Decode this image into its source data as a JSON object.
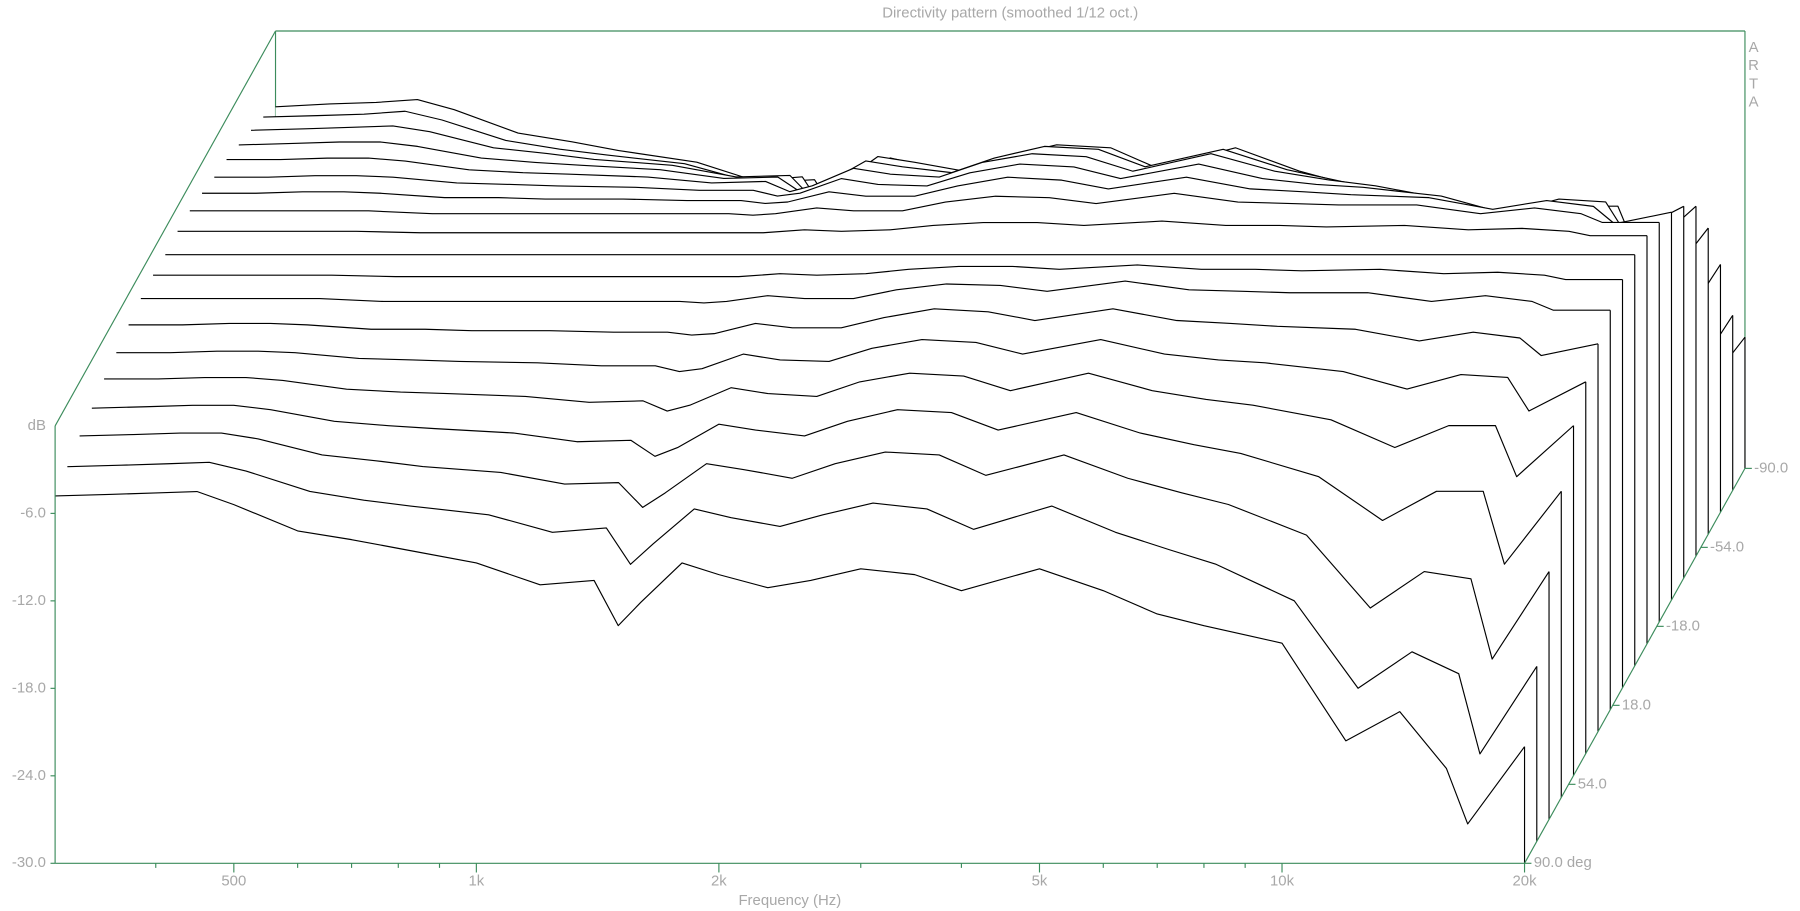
{
  "chart_data": {
    "type": "waterfall",
    "title": "Directivity pattern (smoothed 1/12 oct.)",
    "x_label": "Frequency (Hz)",
    "y_label": "dB",
    "watermark": "ARTA",
    "color": "#000000",
    "axis_color": "#3c8c5c",
    "log_x": true,
    "xlim": [
      300,
      20000
    ],
    "ylim": [
      -30,
      0
    ],
    "zlim": [
      -90,
      90
    ],
    "xticks": [
      500,
      {
        "value": 1000,
        "label": "1k"
      },
      {
        "value": 2000,
        "label": "2k"
      },
      {
        "value": 5000,
        "label": "5k"
      },
      {
        "value": 10000,
        "label": "10k"
      },
      {
        "value": 20000,
        "label": "20k"
      }
    ],
    "xminorticks": [
      400,
      600,
      700,
      800,
      900,
      3000,
      4000,
      6000,
      7000,
      8000,
      9000
    ],
    "yticks": [
      {
        "value": -30,
        "label": "-30.0"
      },
      {
        "value": -24,
        "label": "-24.0"
      },
      {
        "value": -18,
        "label": "-18.0"
      },
      {
        "value": -12,
        "label": "-12.0"
      },
      {
        "value": -6,
        "label": "-6.0"
      }
    ],
    "zticks": [
      {
        "value": -90,
        "label": "-90.0"
      },
      {
        "value": -54,
        "label": "-54.0"
      },
      {
        "value": -18,
        "label": "-18.0"
      },
      {
        "value": 18,
        "label": "18.0"
      },
      {
        "value": 54,
        "label": "54.0"
      },
      {
        "value": 90,
        "label": "90.0 deg"
      }
    ],
    "x": [
      300,
      350,
      400,
      450,
      500,
      600,
      700,
      800,
      1000,
      1200,
      1400,
      1500,
      1600,
      1800,
      2000,
      2300,
      2600,
      3000,
      3500,
      4000,
      5000,
      6000,
      7000,
      8000,
      10000,
      12000,
      14000,
      16000,
      17000,
      20000
    ],
    "series": [
      {
        "z": -90,
        "values": [
          -5.2,
          -5.0,
          -4.9,
          -4.7,
          -5.4,
          -7.0,
          -7.6,
          -8.2,
          -9.0,
          -10.4,
          -10.2,
          -12.8,
          -11.6,
          -9.0,
          -9.8,
          -10.6,
          -10.0,
          -9.0,
          -9.4,
          -10.6,
          -9.0,
          -10.6,
          -12.0,
          -13.0,
          -14.2,
          -20.4,
          -18.6,
          -22.4,
          -26.0,
          -21.0
        ]
      },
      {
        "z": -80,
        "values": [
          -4.4,
          -4.3,
          -4.2,
          -4.0,
          -4.6,
          -6.0,
          -6.6,
          -7.0,
          -7.6,
          -8.8,
          -8.5,
          -11.0,
          -9.6,
          -7.2,
          -7.8,
          -8.4,
          -7.6,
          -6.8,
          -7.2,
          -8.6,
          -7.0,
          -8.8,
          -10.0,
          -11.0,
          -13.5,
          -19.5,
          -17.0,
          -18.5,
          -24.0,
          -18.0
        ]
      },
      {
        "z": -70,
        "values": [
          -3.8,
          -3.7,
          -3.6,
          -3.5,
          -3.9,
          -5.0,
          -5.4,
          -5.8,
          -6.2,
          -7.0,
          -6.9,
          -8.6,
          -7.6,
          -5.6,
          -6.0,
          -6.6,
          -5.6,
          -4.8,
          -5.0,
          -6.4,
          -5.0,
          -6.6,
          -7.6,
          -8.4,
          -10.5,
          -15.5,
          -13.0,
          -13.5,
          -19.0,
          -13.0
        ]
      },
      {
        "z": -60,
        "values": [
          -3.3,
          -3.2,
          -3.1,
          -3.1,
          -3.4,
          -4.2,
          -4.5,
          -4.7,
          -5.0,
          -5.6,
          -5.5,
          -6.6,
          -6.0,
          -4.4,
          -4.8,
          -5.2,
          -4.2,
          -3.4,
          -3.6,
          -4.8,
          -3.6,
          -5.0,
          -5.8,
          -6.4,
          -8.0,
          -11.0,
          -9.0,
          -9.0,
          -14.0,
          -9.0
        ]
      },
      {
        "z": -50,
        "values": [
          -2.8,
          -2.8,
          -2.7,
          -2.7,
          -2.9,
          -3.5,
          -3.7,
          -3.8,
          -4.0,
          -4.4,
          -4.3,
          -5.0,
          -4.6,
          -3.4,
          -3.8,
          -4.0,
          -3.0,
          -2.4,
          -2.6,
          -3.6,
          -2.4,
          -3.6,
          -4.2,
          -4.6,
          -5.6,
          -7.5,
          -6.0,
          -6.0,
          -9.5,
          -6.0
        ]
      },
      {
        "z": -40,
        "values": [
          -2.5,
          -2.5,
          -2.4,
          -2.4,
          -2.5,
          -2.9,
          -3.0,
          -3.1,
          -3.2,
          -3.4,
          -3.4,
          -3.8,
          -3.6,
          -2.6,
          -3.0,
          -3.1,
          -2.2,
          -1.6,
          -1.8,
          -2.6,
          -1.6,
          -2.6,
          -3.0,
          -3.2,
          -3.8,
          -5.0,
          -4.0,
          -4.2,
          -6.5,
          -4.5
        ]
      },
      {
        "z": -30,
        "values": [
          -2.1,
          -2.1,
          -2.0,
          -2.0,
          -2.1,
          -2.4,
          -2.4,
          -2.5,
          -2.5,
          -2.6,
          -2.6,
          -2.8,
          -2.7,
          -2.0,
          -2.3,
          -2.3,
          -1.6,
          -1.0,
          -1.2,
          -1.8,
          -1.0,
          -1.8,
          -2.0,
          -2.2,
          -2.4,
          -3.2,
          -2.6,
          -3.0,
          -4.2,
          -3.4
        ]
      },
      {
        "z": -20,
        "values": [
          -1.8,
          -1.8,
          -1.8,
          -1.8,
          -1.8,
          -2.0,
          -2.0,
          -2.0,
          -2.0,
          -2.0,
          -2.0,
          -2.1,
          -2.0,
          -1.6,
          -1.8,
          -1.8,
          -1.2,
          -0.8,
          -0.9,
          -1.3,
          -0.6,
          -1.2,
          -1.3,
          -1.4,
          -1.4,
          -2.0,
          -1.6,
          -2.0,
          -2.6,
          -2.6
        ]
      },
      {
        "z": -10,
        "values": [
          -1.7,
          -1.7,
          -1.7,
          -1.7,
          -1.7,
          -1.8,
          -1.8,
          -1.8,
          -1.8,
          -1.8,
          -1.8,
          -1.8,
          -1.8,
          -1.6,
          -1.7,
          -1.6,
          -1.3,
          -1.1,
          -1.1,
          -1.3,
          -1.0,
          -1.3,
          -1.3,
          -1.4,
          -1.3,
          -1.6,
          -1.5,
          -1.7,
          -2.0,
          -2.0
        ]
      },
      {
        "z": 0,
        "values": [
          -1.8,
          -1.8,
          -1.8,
          -1.8,
          -1.8,
          -1.8,
          -1.8,
          -1.8,
          -1.8,
          -1.8,
          -1.8,
          -1.8,
          -1.8,
          -1.8,
          -1.8,
          -1.8,
          -1.8,
          -1.8,
          -1.8,
          -1.8,
          -1.8,
          -1.8,
          -1.8,
          -1.8,
          -1.8,
          -1.8,
          -1.8,
          -1.8,
          -1.8,
          -1.8
        ]
      },
      {
        "z": 10,
        "values": [
          -1.7,
          -1.7,
          -1.7,
          -1.7,
          -1.7,
          -1.8,
          -1.8,
          -1.8,
          -1.8,
          -1.8,
          -1.8,
          -1.8,
          -1.8,
          -1.6,
          -1.7,
          -1.6,
          -1.3,
          -1.1,
          -1.1,
          -1.3,
          -1.0,
          -1.3,
          -1.3,
          -1.4,
          -1.3,
          -1.6,
          -1.5,
          -1.7,
          -2.0,
          -2.0
        ]
      },
      {
        "z": 20,
        "values": [
          -1.8,
          -1.8,
          -1.8,
          -1.8,
          -1.8,
          -2.0,
          -2.0,
          -2.0,
          -2.0,
          -2.0,
          -2.0,
          -2.1,
          -2.0,
          -1.6,
          -1.8,
          -1.8,
          -1.2,
          -0.8,
          -0.9,
          -1.3,
          -0.6,
          -1.2,
          -1.3,
          -1.4,
          -1.4,
          -2.0,
          -1.6,
          -2.0,
          -2.6,
          -2.6
        ]
      },
      {
        "z": 30,
        "values": [
          -2.1,
          -2.1,
          -2.0,
          -2.0,
          -2.1,
          -2.4,
          -2.4,
          -2.5,
          -2.5,
          -2.6,
          -2.6,
          -2.8,
          -2.7,
          -2.0,
          -2.3,
          -2.3,
          -1.6,
          -1.0,
          -1.2,
          -1.8,
          -1.0,
          -1.8,
          -2.0,
          -2.2,
          -2.4,
          -3.2,
          -2.6,
          -3.0,
          -4.2,
          -3.4
        ]
      },
      {
        "z": 40,
        "values": [
          -2.5,
          -2.5,
          -2.4,
          -2.4,
          -2.5,
          -2.9,
          -3.0,
          -3.1,
          -3.2,
          -3.4,
          -3.4,
          -3.8,
          -3.6,
          -2.6,
          -3.0,
          -3.1,
          -2.2,
          -1.6,
          -1.8,
          -2.6,
          -1.6,
          -2.6,
          -3.0,
          -3.2,
          -3.8,
          -5.0,
          -4.0,
          -4.2,
          -6.5,
          -4.5
        ]
      },
      {
        "z": 50,
        "values": [
          -2.8,
          -2.8,
          -2.7,
          -2.7,
          -2.9,
          -3.5,
          -3.7,
          -3.8,
          -4.0,
          -4.4,
          -4.3,
          -5.0,
          -4.6,
          -3.4,
          -3.8,
          -4.0,
          -3.0,
          -2.4,
          -2.6,
          -3.6,
          -2.4,
          -3.6,
          -4.2,
          -4.6,
          -5.6,
          -7.5,
          -6.0,
          -6.0,
          -9.5,
          -6.0
        ]
      },
      {
        "z": 60,
        "values": [
          -3.3,
          -3.2,
          -3.1,
          -3.1,
          -3.4,
          -4.2,
          -4.5,
          -4.7,
          -5.0,
          -5.6,
          -5.5,
          -6.6,
          -6.0,
          -4.4,
          -4.8,
          -5.2,
          -4.2,
          -3.4,
          -3.6,
          -4.8,
          -3.6,
          -5.0,
          -5.8,
          -6.4,
          -8.0,
          -11.0,
          -9.0,
          -9.0,
          -14.0,
          -9.0
        ]
      },
      {
        "z": 70,
        "values": [
          -3.7,
          -3.6,
          -3.5,
          -3.5,
          -3.9,
          -5.0,
          -5.4,
          -5.8,
          -6.2,
          -7.0,
          -6.9,
          -8.6,
          -7.6,
          -5.6,
          -6.0,
          -6.6,
          -5.6,
          -4.8,
          -5.0,
          -6.4,
          -5.0,
          -6.6,
          -7.6,
          -8.4,
          -10.5,
          -15.5,
          -13.0,
          -13.5,
          -19.0,
          -13.0
        ]
      },
      {
        "z": 80,
        "values": [
          -4.3,
          -4.2,
          -4.1,
          -4.0,
          -4.6,
          -6.0,
          -6.6,
          -7.0,
          -7.6,
          -8.8,
          -8.5,
          -11.0,
          -9.6,
          -7.2,
          -7.8,
          -8.4,
          -7.6,
          -6.8,
          -7.2,
          -8.6,
          -7.0,
          -8.8,
          -10.0,
          -11.0,
          -13.5,
          -19.5,
          -17.0,
          -18.5,
          -24.0,
          -18.0
        ]
      },
      {
        "z": 90,
        "values": [
          -4.8,
          -4.7,
          -4.6,
          -4.5,
          -5.4,
          -7.2,
          -7.8,
          -8.4,
          -9.4,
          -10.9,
          -10.6,
          -13.7,
          -12.1,
          -9.4,
          -10.2,
          -11.1,
          -10.6,
          -9.8,
          -10.2,
          -11.3,
          -9.8,
          -11.3,
          -12.9,
          -13.7,
          -14.9,
          -21.6,
          -19.6,
          -23.5,
          -27.3,
          -22.0
        ]
      }
    ]
  }
}
